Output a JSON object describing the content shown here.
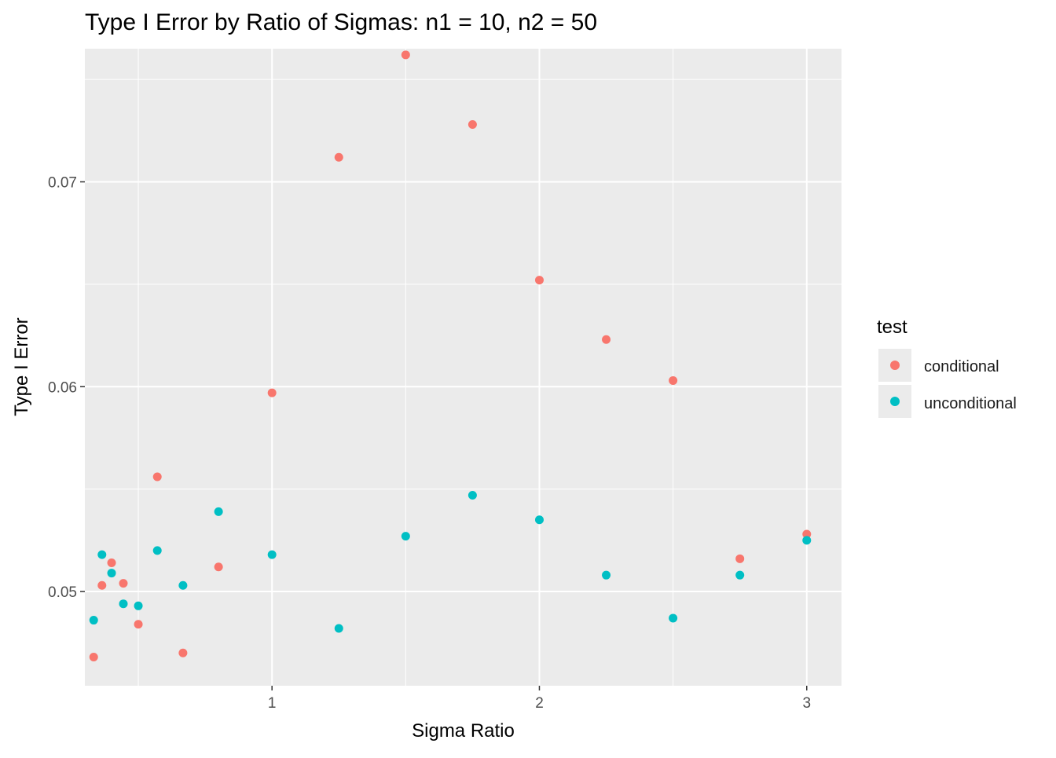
{
  "chart_data": {
    "type": "scatter",
    "title": "Type I Error by Ratio of Sigmas: n1 = 10, n2 = 50",
    "xlabel": "Sigma Ratio",
    "ylabel": "Type I Error",
    "xlim": [
      0.3,
      3.13
    ],
    "ylim": [
      0.0454,
      0.0765
    ],
    "x_ticks": [
      1,
      2,
      3
    ],
    "y_ticks": [
      0.05,
      0.06,
      0.07
    ],
    "x_tick_labels": [
      "1",
      "2",
      "3"
    ],
    "y_tick_labels": [
      "0.05",
      "0.06",
      "0.07"
    ],
    "grid": true,
    "legend": {
      "title": "test",
      "position": "right"
    },
    "series": [
      {
        "name": "conditional",
        "color": "#F8766D",
        "points": [
          [
            0.333,
            0.0468
          ],
          [
            0.364,
            0.0503
          ],
          [
            0.4,
            0.0514
          ],
          [
            0.444,
            0.0504
          ],
          [
            0.5,
            0.0484
          ],
          [
            0.571,
            0.0556
          ],
          [
            0.667,
            0.047
          ],
          [
            0.8,
            0.0512
          ],
          [
            1.0,
            0.0597
          ],
          [
            1.25,
            0.0712
          ],
          [
            1.5,
            0.0762
          ],
          [
            1.75,
            0.0728
          ],
          [
            2.0,
            0.0652
          ],
          [
            2.25,
            0.0623
          ],
          [
            2.5,
            0.0603
          ],
          [
            2.75,
            0.0516
          ],
          [
            3.0,
            0.0528
          ]
        ]
      },
      {
        "name": "unconditional",
        "color": "#00BFC4",
        "points": [
          [
            0.333,
            0.0486
          ],
          [
            0.364,
            0.0518
          ],
          [
            0.4,
            0.0509
          ],
          [
            0.444,
            0.0494
          ],
          [
            0.5,
            0.0493
          ],
          [
            0.571,
            0.052
          ],
          [
            0.667,
            0.0503
          ],
          [
            0.8,
            0.0539
          ],
          [
            1.0,
            0.0518
          ],
          [
            1.25,
            0.0482
          ],
          [
            1.5,
            0.0527
          ],
          [
            1.75,
            0.0547
          ],
          [
            2.0,
            0.0535
          ],
          [
            2.25,
            0.0508
          ],
          [
            2.5,
            0.0487
          ],
          [
            2.75,
            0.0508
          ],
          [
            3.0,
            0.0525
          ]
        ]
      }
    ]
  }
}
